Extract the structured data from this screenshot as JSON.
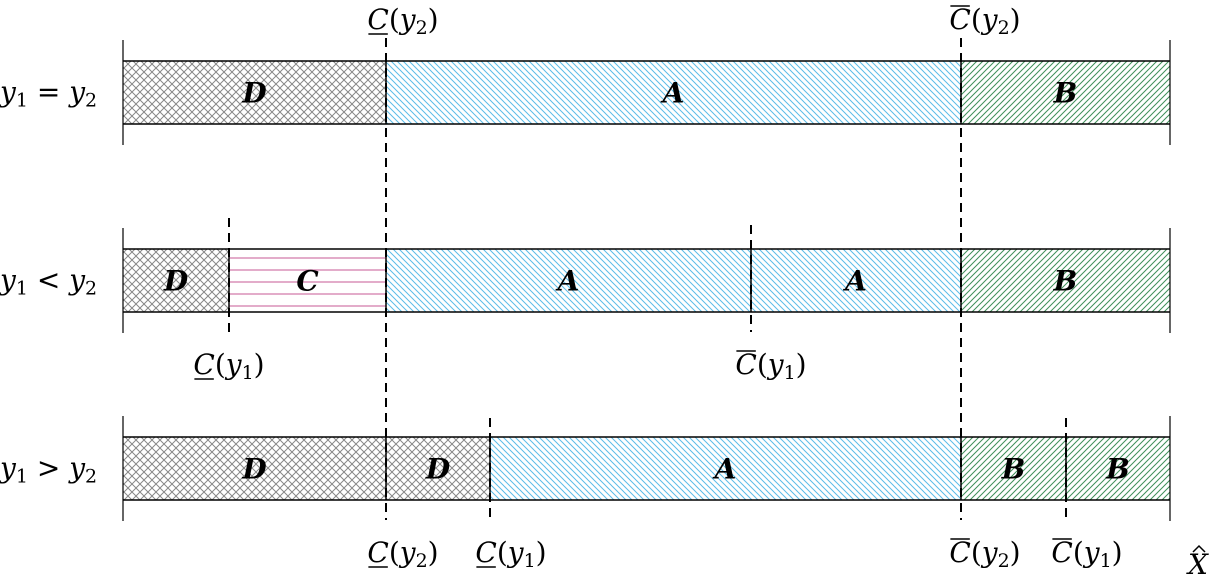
{
  "colors": {
    "D": "#888888",
    "C": "#d47fae",
    "A": "#5bbce8",
    "B": "#3f8f5a",
    "line": "#000000"
  },
  "rows": [
    {
      "label": {
        "a": "y",
        "asub": "1",
        "op": "=",
        "b": "y",
        "bsub": "2"
      },
      "segments": [
        {
          "letter": "D"
        },
        {
          "letter": "A"
        },
        {
          "letter": "B"
        }
      ]
    },
    {
      "label": {
        "a": "y",
        "asub": "1",
        "op": "<",
        "b": "y",
        "bsub": "2"
      },
      "segments": [
        {
          "letter": "D"
        },
        {
          "letter": "C"
        },
        {
          "letter": "A"
        },
        {
          "letter": "A"
        },
        {
          "letter": "B"
        }
      ]
    },
    {
      "label": {
        "a": "y",
        "asub": "1",
        "op": ">",
        "b": "y",
        "bsub": "2"
      },
      "segments": [
        {
          "letter": "D"
        },
        {
          "letter": "D"
        },
        {
          "letter": "A"
        },
        {
          "letter": "B"
        },
        {
          "letter": "B"
        }
      ]
    }
  ],
  "thresholds": [
    {
      "sym": "C",
      "mark": "underline",
      "arg": "y",
      "sub": "2"
    },
    {
      "sym": "C",
      "mark": "bar",
      "arg": "y",
      "sub": "2"
    },
    {
      "sym": "C",
      "mark": "underline",
      "arg": "y",
      "sub": "1"
    },
    {
      "sym": "C",
      "mark": "bar",
      "arg": "y",
      "sub": "1"
    },
    {
      "sym": "C",
      "mark": "underline",
      "arg": "y",
      "sub": "2"
    },
    {
      "sym": "C",
      "mark": "underline",
      "arg": "y",
      "sub": "1"
    },
    {
      "sym": "C",
      "mark": "bar",
      "arg": "y",
      "sub": "2"
    },
    {
      "sym": "C",
      "mark": "bar",
      "arg": "y",
      "sub": "1"
    }
  ],
  "axis_label": {
    "sym": "X",
    "mark": "hat"
  }
}
